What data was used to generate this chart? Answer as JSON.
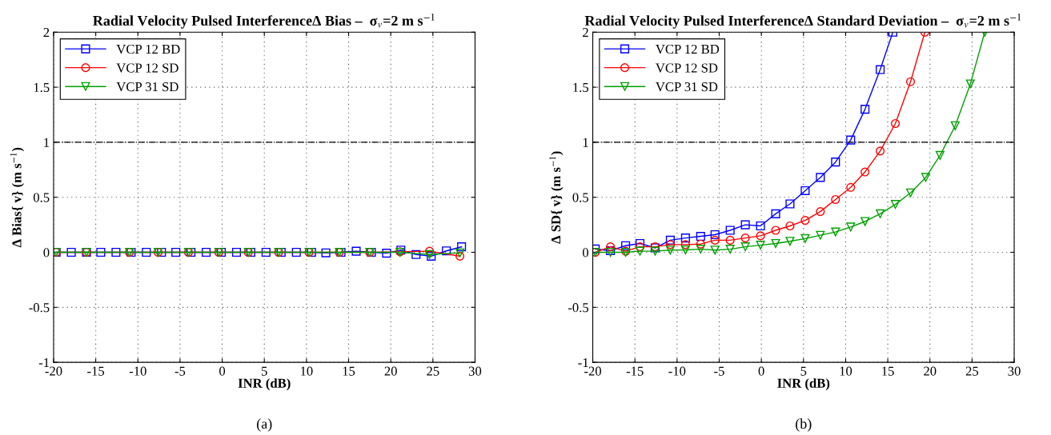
{
  "chart_data": [
    {
      "type": "line",
      "title": "Radial Velocity Pulsed InterferenceΔ Bias –  σ$_{v}$=2 m s$^{−1}$",
      "xlabel": "INR (dB)",
      "ylabel": "Δ Bias{ v} (m s$^{−1}$)",
      "xlim": [
        -20,
        30
      ],
      "xticks": [
        -20,
        -15,
        -10,
        -5,
        0,
        5,
        10,
        15,
        20,
        25,
        30
      ],
      "ylim": [
        -1,
        2
      ],
      "yticks": [
        -1,
        -0.5,
        0,
        0.5,
        1,
        1.5,
        2
      ],
      "grid": true,
      "legend": "top left",
      "line_style": "solid",
      "ref_lines": [
        {
          "axis": "y",
          "value": 1,
          "color": "#000000",
          "line_style": "dashdot"
        }
      ],
      "annotations": [
        "(a)"
      ],
      "series": [
        {
          "name": "VCP 12 BD",
          "color": "#0000ff",
          "marker": "square",
          "x": [
            -19.7,
            -17.9,
            -16.1,
            -14.4,
            -12.6,
            -10.8,
            -9.0,
            -7.2,
            -5.5,
            -3.7,
            -1.9,
            -0.1,
            1.7,
            3.4,
            5.2,
            7.0,
            8.8,
            10.6,
            12.3,
            14.1,
            15.9,
            17.7,
            19.5,
            21.2,
            23.0,
            24.8,
            26.6,
            28.4
          ],
          "values": [
            0,
            0,
            0,
            0,
            0,
            0,
            0,
            0,
            0,
            0,
            0,
            0,
            0,
            0,
            0,
            0,
            0,
            0,
            -0.005,
            0,
            0.01,
            0,
            -0.008,
            0.02,
            -0.02,
            -0.035,
            0.013,
            0.05
          ]
        },
        {
          "name": "VCP 12 SD",
          "color": "#ff0000",
          "marker": "circle",
          "x": [
            -19.7,
            -16.1,
            -11.0,
            -7.6,
            -4.0,
            -0.4,
            3.1,
            6.7,
            10.3,
            13.9,
            17.5,
            21.1,
            24.6,
            28.2
          ],
          "values": [
            0,
            0,
            0,
            0,
            0,
            0,
            0,
            0,
            0,
            0,
            0,
            0.005,
            0.01,
            -0.035
          ]
        },
        {
          "name": "VCP 31 SD",
          "color": "#00a000",
          "marker": "triangle",
          "x": [
            -19.7,
            -16.1,
            -11.0,
            -7.6,
            -4.0,
            -0.4,
            3.1,
            6.7,
            10.3,
            13.9,
            17.5,
            21.1,
            24.6,
            28.2
          ],
          "values": [
            0,
            0,
            0,
            0,
            0,
            0,
            0,
            0,
            0,
            0,
            0,
            0,
            -0.02,
            -0.005
          ]
        }
      ]
    },
    {
      "type": "line",
      "title": "Radial Velocity Pulsed InterferenceΔ Standard Deviation –  σ$_{v}$=2 m s$^{−1}$",
      "xlabel": "INR (dB)",
      "ylabel": "Δ SD{ v} (m s$^{−1}$)",
      "xlim": [
        -20,
        30
      ],
      "xticks": [
        -20,
        -15,
        -10,
        -5,
        0,
        5,
        10,
        15,
        20,
        25,
        30
      ],
      "ylim": [
        -1,
        2
      ],
      "yticks": [
        -1,
        -0.5,
        0,
        0.5,
        1,
        1.5,
        2
      ],
      "grid": true,
      "legend": "top left",
      "line_style": "solid",
      "ref_lines": [
        {
          "axis": "y",
          "value": 1,
          "color": "#000000",
          "line_style": "dashdot"
        }
      ],
      "annotations": [
        "(b)"
      ],
      "series": [
        {
          "name": "VCP 12 BD",
          "color": "#0000ff",
          "marker": "square",
          "x": [
            -19.7,
            -17.9,
            -16.1,
            -14.4,
            -12.6,
            -10.8,
            -9.0,
            -7.2,
            -5.5,
            -3.7,
            -1.9,
            -0.1,
            1.7,
            3.4,
            5.2,
            7.0,
            8.8,
            10.6,
            12.3,
            14.1,
            15.6
          ],
          "values": [
            0.03,
            0.015,
            0.06,
            0.08,
            0.04,
            0.11,
            0.13,
            0.145,
            0.16,
            0.2,
            0.25,
            0.24,
            0.35,
            0.44,
            0.56,
            0.68,
            0.82,
            1.02,
            1.3,
            1.66,
            2.0
          ]
        },
        {
          "name": "VCP 12 SD",
          "color": "#ff0000",
          "marker": "circle",
          "x": [
            -19.7,
            -17.9,
            -16.1,
            -14.4,
            -12.6,
            -10.8,
            -9.0,
            -7.2,
            -5.5,
            -3.7,
            -1.9,
            -0.1,
            1.7,
            3.4,
            5.2,
            7.0,
            8.8,
            10.6,
            12.3,
            14.1,
            15.9,
            17.7,
            19.4
          ],
          "values": [
            0.0,
            0.05,
            0.01,
            0.05,
            0.05,
            0.07,
            0.07,
            0.075,
            0.11,
            0.11,
            0.13,
            0.15,
            0.2,
            0.24,
            0.29,
            0.37,
            0.48,
            0.59,
            0.73,
            0.92,
            1.17,
            1.55,
            2.0
          ]
        },
        {
          "name": "VCP 31 SD",
          "color": "#00a000",
          "marker": "triangle",
          "x": [
            -19.7,
            -17.9,
            -16.1,
            -14.4,
            -12.6,
            -10.8,
            -9.0,
            -7.2,
            -5.5,
            -3.7,
            -1.9,
            -0.1,
            1.7,
            3.4,
            5.2,
            7.0,
            8.8,
            10.6,
            12.3,
            14.1,
            15.9,
            17.7,
            19.5,
            21.2,
            23.0,
            24.8,
            26.5
          ],
          "values": [
            0.0,
            0.0,
            0.0,
            0.01,
            0.01,
            0.02,
            0.022,
            0.028,
            0.02,
            0.028,
            0.05,
            0.065,
            0.08,
            0.1,
            0.125,
            0.155,
            0.185,
            0.23,
            0.28,
            0.35,
            0.435,
            0.54,
            0.68,
            0.88,
            1.15,
            1.53,
            2.0
          ]
        }
      ]
    }
  ]
}
